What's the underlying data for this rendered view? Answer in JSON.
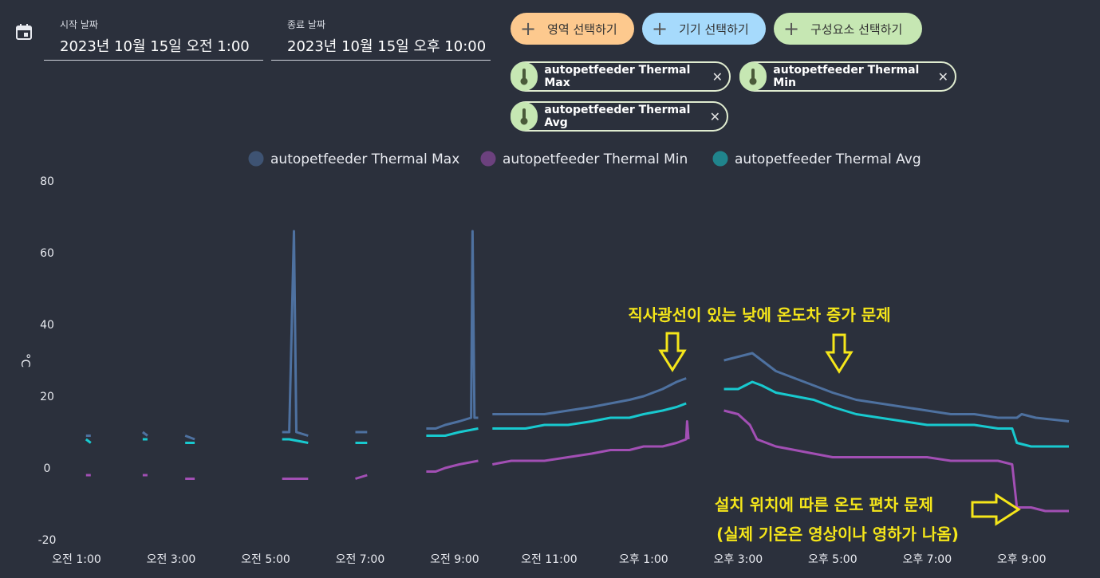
{
  "filters": {
    "start_label": "시작 날짜",
    "start_value": "2023년 10월 15일 오전 1:00",
    "end_label": "종료 날짜",
    "end_value": "2023년 10월 15일 오후 10:00",
    "buttons": [
      {
        "label": "영역 선택하기",
        "color": "#fdc98e"
      },
      {
        "label": "기기 선택하기",
        "color": "#a6dafc"
      },
      {
        "label": "구성요소 선택하기",
        "color": "#c6e7b3"
      }
    ],
    "chips": [
      {
        "label": "autopetfeeder Thermal Max",
        "icon": "thermometer-icon"
      },
      {
        "label": "autopetfeeder Thermal Min",
        "icon": "thermometer-icon"
      },
      {
        "label": "autopetfeeder Thermal Avg",
        "icon": "thermometer-icon"
      }
    ]
  },
  "chart_data": {
    "type": "line",
    "ylabel": "°C",
    "ylim": [
      -20,
      80
    ],
    "yticks": [
      -20,
      0,
      20,
      40,
      60,
      80
    ],
    "xlim": [
      1,
      22
    ],
    "xticks": [
      {
        "x": 1,
        "label": "오전 1:00"
      },
      {
        "x": 3,
        "label": "오전 3:00"
      },
      {
        "x": 5,
        "label": "오전 5:00"
      },
      {
        "x": 7,
        "label": "오전 7:00"
      },
      {
        "x": 9,
        "label": "오전 9:00"
      },
      {
        "x": 11,
        "label": "오전 11:00"
      },
      {
        "x": 13,
        "label": "오후 1:00"
      },
      {
        "x": 15,
        "label": "오후 3:00"
      },
      {
        "x": 17,
        "label": "오후 5:00"
      },
      {
        "x": 19,
        "label": "오후 7:00"
      },
      {
        "x": 21,
        "label": "오후 9:00"
      }
    ],
    "legend_position": "top",
    "series": [
      {
        "name": "autopetfeeder Thermal Max",
        "color": "#4e71a0",
        "points": [
          [
            1.2,
            9
          ],
          [
            1.3,
            9
          ],
          null,
          [
            1.65,
            9
          ],
          null,
          [
            2.4,
            10
          ],
          [
            2.5,
            9
          ],
          null,
          [
            3.3,
            9
          ],
          [
            3.5,
            8
          ],
          null,
          [
            5.35,
            10
          ],
          [
            5.5,
            10
          ],
          [
            5.6,
            66
          ],
          [
            5.65,
            10
          ],
          [
            5.9,
            9
          ],
          null,
          [
            6.9,
            10
          ],
          [
            7.15,
            10
          ],
          null,
          [
            8.4,
            11
          ],
          [
            8.6,
            11
          ],
          [
            8.8,
            12
          ],
          [
            9.1,
            13
          ],
          [
            9.35,
            14
          ],
          [
            9.38,
            66
          ],
          [
            9.42,
            14
          ],
          [
            9.5,
            14
          ],
          null,
          [
            9.8,
            15
          ],
          [
            10.2,
            15
          ],
          [
            10.5,
            15
          ],
          [
            10.9,
            15
          ],
          [
            11.4,
            16
          ],
          [
            11.9,
            17
          ],
          [
            12.3,
            18
          ],
          [
            12.7,
            19
          ],
          [
            13.0,
            20
          ],
          [
            13.4,
            22
          ],
          [
            13.7,
            24
          ],
          [
            13.9,
            25
          ],
          null,
          [
            14.7,
            30
          ],
          [
            15.0,
            31
          ],
          [
            15.3,
            32
          ],
          [
            15.5,
            30
          ],
          [
            15.8,
            27
          ],
          [
            16.2,
            25
          ],
          [
            16.6,
            23
          ],
          [
            17.0,
            21
          ],
          [
            17.5,
            19
          ],
          [
            18.0,
            18
          ],
          [
            18.5,
            17
          ],
          [
            19.0,
            16
          ],
          [
            19.5,
            15
          ],
          [
            20.0,
            15
          ],
          [
            20.5,
            14
          ],
          [
            20.9,
            14
          ],
          [
            21.0,
            15
          ],
          [
            21.3,
            14
          ],
          [
            22.0,
            13
          ]
        ]
      },
      {
        "name": "autopetfeeder Thermal Min",
        "color": "#a24fb4",
        "points": [
          [
            1.2,
            -2
          ],
          [
            1.3,
            -2
          ],
          null,
          [
            1.65,
            -2
          ],
          null,
          [
            2.4,
            -2
          ],
          [
            2.5,
            -2
          ],
          null,
          [
            3.3,
            -3
          ],
          [
            3.5,
            -3
          ],
          null,
          [
            5.35,
            -3
          ],
          [
            5.5,
            -3
          ],
          [
            5.9,
            -3
          ],
          null,
          [
            6.9,
            -3
          ],
          [
            7.15,
            -2
          ],
          null,
          [
            8.4,
            -1
          ],
          [
            8.6,
            -1
          ],
          [
            8.8,
            0
          ],
          [
            9.1,
            1
          ],
          [
            9.5,
            2
          ],
          null,
          [
            9.8,
            1
          ],
          [
            10.2,
            2
          ],
          [
            10.5,
            2
          ],
          [
            10.9,
            2
          ],
          [
            11.4,
            3
          ],
          [
            11.9,
            4
          ],
          [
            12.3,
            5
          ],
          [
            12.7,
            5
          ],
          [
            13.0,
            6
          ],
          [
            13.4,
            6
          ],
          [
            13.7,
            7
          ],
          [
            13.9,
            8
          ],
          [
            13.92,
            13
          ],
          [
            13.95,
            8
          ],
          null,
          [
            14.7,
            16
          ],
          [
            15.0,
            15
          ],
          [
            15.25,
            12
          ],
          [
            15.4,
            8
          ],
          [
            15.8,
            6
          ],
          [
            16.2,
            5
          ],
          [
            16.6,
            4
          ],
          [
            17.0,
            3
          ],
          [
            17.5,
            3
          ],
          [
            18.0,
            3
          ],
          [
            18.5,
            3
          ],
          [
            19.0,
            3
          ],
          [
            19.5,
            2
          ],
          [
            20.0,
            2
          ],
          [
            20.5,
            2
          ],
          [
            20.8,
            1
          ],
          [
            20.9,
            -11
          ],
          [
            21.2,
            -11
          ],
          [
            21.5,
            -12
          ],
          [
            22.0,
            -12
          ]
        ]
      },
      {
        "name": "autopetfeeder Thermal Avg",
        "color": "#18c9cf",
        "points": [
          [
            1.2,
            8
          ],
          [
            1.3,
            7
          ],
          null,
          [
            1.65,
            8
          ],
          null,
          [
            2.4,
            8
          ],
          [
            2.5,
            8
          ],
          null,
          [
            3.3,
            7
          ],
          [
            3.5,
            7
          ],
          null,
          [
            5.35,
            8
          ],
          [
            5.5,
            8
          ],
          [
            5.9,
            7
          ],
          null,
          [
            6.9,
            7
          ],
          [
            7.15,
            7
          ],
          null,
          [
            8.4,
            9
          ],
          [
            8.6,
            9
          ],
          [
            8.8,
            9
          ],
          [
            9.1,
            10
          ],
          [
            9.5,
            11
          ],
          null,
          [
            9.8,
            11
          ],
          [
            10.2,
            11
          ],
          [
            10.5,
            11
          ],
          [
            10.9,
            12
          ],
          [
            11.4,
            12
          ],
          [
            11.9,
            13
          ],
          [
            12.3,
            14
          ],
          [
            12.7,
            14
          ],
          [
            13.0,
            15
          ],
          [
            13.4,
            16
          ],
          [
            13.7,
            17
          ],
          [
            13.9,
            18
          ],
          null,
          [
            14.7,
            22
          ],
          [
            15.0,
            22
          ],
          [
            15.3,
            24
          ],
          [
            15.5,
            23
          ],
          [
            15.8,
            21
          ],
          [
            16.2,
            20
          ],
          [
            16.6,
            19
          ],
          [
            17.0,
            17
          ],
          [
            17.5,
            15
          ],
          [
            18.0,
            14
          ],
          [
            18.5,
            13
          ],
          [
            19.0,
            12
          ],
          [
            19.5,
            12
          ],
          [
            20.0,
            12
          ],
          [
            20.5,
            11
          ],
          [
            20.8,
            11
          ],
          [
            20.9,
            7
          ],
          [
            21.2,
            6
          ],
          [
            21.5,
            6
          ],
          [
            22.0,
            6
          ]
        ]
      }
    ],
    "annotations": [
      {
        "text": "직사광선이 있는 낮에 온도차 증가 문제",
        "color": "#f5e61a"
      },
      {
        "text": "설치 위치에 따른 온도 편차 문제",
        "color": "#f5e61a"
      },
      {
        "text": "(실제 기온은 영상이나 영하가 나옴)",
        "color": "#f5e61a"
      }
    ]
  }
}
